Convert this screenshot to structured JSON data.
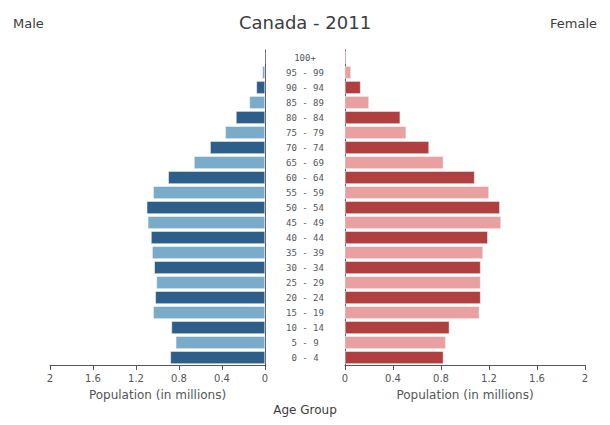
{
  "chart_data": {
    "type": "bar",
    "orientation": "horizontal",
    "title": "Canada - 2011",
    "xlabel": "Population (in millions)",
    "ylabel": "Age Group",
    "categories": [
      "0 - 4",
      "5 - 9",
      "10 - 14",
      "15 - 19",
      "20 - 24",
      "25 - 29",
      "30 - 34",
      "35 - 39",
      "40 - 44",
      "45 - 49",
      "50 - 54",
      "55 - 59",
      "60 - 64",
      "65 - 69",
      "70 - 74",
      "75 - 79",
      "80 - 84",
      "85 - 89",
      "90 - 94",
      "95 - 99",
      "100+"
    ],
    "series": [
      {
        "name": "Male",
        "values": [
          0.88,
          0.83,
          0.87,
          1.04,
          1.02,
          1.01,
          1.03,
          1.05,
          1.06,
          1.09,
          1.1,
          1.04,
          0.9,
          0.66,
          0.51,
          0.37,
          0.27,
          0.145,
          0.08,
          0.025,
          0.004
        ],
        "colors": [
          "#2e5f8a",
          "#7aabc8",
          "#2e5f8a",
          "#7aabc8",
          "#2e5f8a",
          "#7aabc8",
          "#2e5f8a",
          "#7aabc8",
          "#2e5f8a",
          "#7aabc8",
          "#2e5f8a",
          "#7aabc8",
          "#2e5f8a",
          "#7aabc8",
          "#2e5f8a",
          "#7aabc8",
          "#2e5f8a",
          "#7aabc8",
          "#2e5f8a",
          "#7aabc8",
          "#2e5f8a"
        ]
      },
      {
        "name": "Female",
        "values": [
          0.82,
          0.84,
          0.87,
          1.12,
          1.13,
          1.13,
          1.13,
          1.15,
          1.19,
          1.3,
          1.29,
          1.2,
          1.08,
          0.82,
          0.7,
          0.51,
          0.46,
          0.2,
          0.13,
          0.05,
          0.01
        ],
        "colors": [
          "#b04040",
          "#e8a0a0",
          "#b04040",
          "#e8a0a0",
          "#b04040",
          "#e8a0a0",
          "#b04040",
          "#e8a0a0",
          "#b04040",
          "#e8a0a0",
          "#b04040",
          "#e8a0a0",
          "#b04040",
          "#e8a0a0",
          "#b04040",
          "#e8a0a0",
          "#b04040",
          "#e8a0a0",
          "#b04040",
          "#e8a0a0",
          "#b04040"
        ]
      }
    ],
    "xlim": [
      0,
      2.0
    ],
    "xticks": [
      0,
      0.4,
      0.8,
      1.2,
      1.6,
      2
    ],
    "grid": false
  }
}
